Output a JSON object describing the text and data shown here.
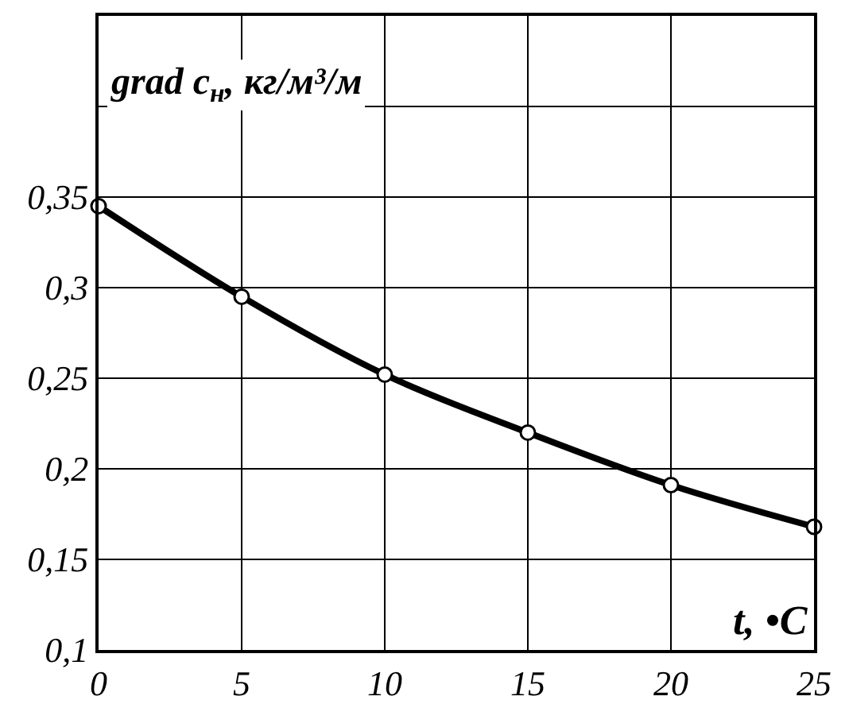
{
  "chart_data": {
    "type": "line",
    "xlabel": "t, •C",
    "ylabel": "grad c$_{н}$, кг/м³/м",
    "x": [
      0,
      5,
      10,
      15,
      20,
      25
    ],
    "series": [
      {
        "color": "#000000",
        "values": [
          0.345,
          0.295,
          0.252,
          0.22,
          0.191,
          0.168
        ]
      }
    ],
    "xlim": [
      0,
      25
    ],
    "xticks": [
      0,
      5,
      10,
      15,
      20,
      25
    ],
    "ylim": [
      0.1,
      0.45
    ],
    "yticks": [
      {
        "value": 0.1,
        "label": "0,1"
      },
      {
        "value": 0.15,
        "label": "0,15"
      },
      {
        "value": 0.2,
        "label": "0,2"
      },
      {
        "value": 0.25,
        "label": "0,25"
      },
      {
        "value": 0.3,
        "label": "0,3"
      },
      {
        "value": 0.35,
        "label": "0,35"
      },
      {
        "value": 0.4,
        "label": null
      }
    ],
    "grid": true,
    "marker": "circle",
    "line_style": "solid"
  }
}
